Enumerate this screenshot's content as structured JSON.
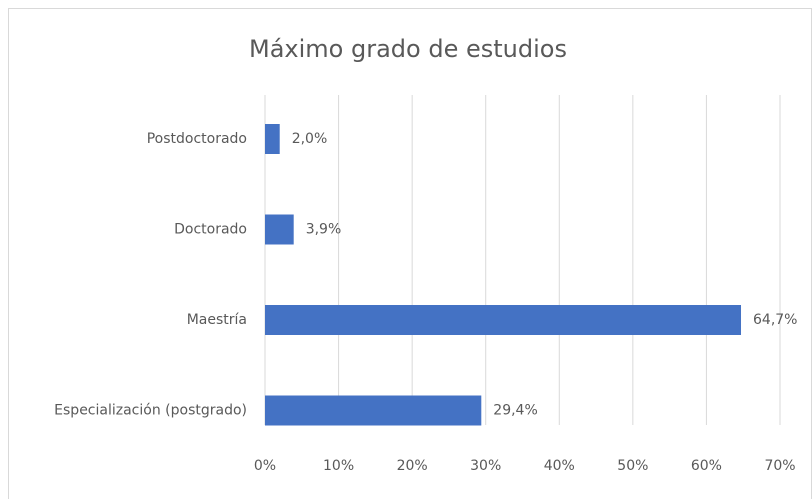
{
  "chart_data": {
    "type": "bar",
    "orientation": "horizontal",
    "title": "Máximo grado de estudios",
    "categories": [
      "Postdoctorado",
      "Doctorado",
      "Maestría",
      "Especialización (postgrado)"
    ],
    "values": [
      2.0,
      3.9,
      64.7,
      29.4
    ],
    "value_labels": [
      "2,0%",
      "3,9%",
      "64,7%",
      "29,4%"
    ],
    "color": "#4472c4",
    "xlim": [
      0,
      70
    ],
    "xticks": [
      {
        "value": 0,
        "label": "0%"
      },
      {
        "value": 10,
        "label": "10%"
      },
      {
        "value": 20,
        "label": "20%"
      },
      {
        "value": 30,
        "label": "30%"
      },
      {
        "value": 40,
        "label": "40%"
      },
      {
        "value": 50,
        "label": "50%"
      },
      {
        "value": 60,
        "label": "60%"
      },
      {
        "value": 70,
        "label": "70%"
      }
    ],
    "grid": true
  }
}
